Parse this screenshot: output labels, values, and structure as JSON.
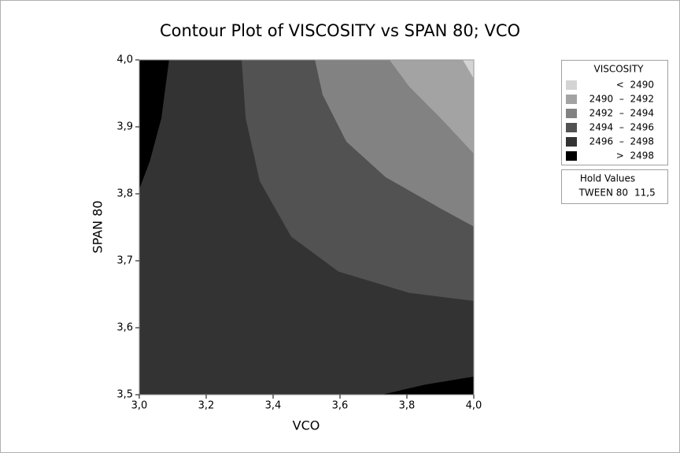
{
  "chart_data": {
    "type": "contour",
    "title": "Contour Plot of VISCOSITY vs SPAN 80; VCO",
    "x_label": "VCO",
    "y_label": "SPAN 80",
    "xlim": [
      3.0,
      4.0
    ],
    "ylim": [
      3.5,
      4.0
    ],
    "xticks": [
      {
        "value": 3.0,
        "label": "3,0"
      },
      {
        "value": 3.2,
        "label": "3,2"
      },
      {
        "value": 3.4,
        "label": "3,4"
      },
      {
        "value": 3.6,
        "label": "3,6"
      },
      {
        "value": 3.8,
        "label": "3,8"
      },
      {
        "value": 4.0,
        "label": "4,0"
      }
    ],
    "yticks": [
      {
        "value": 3.5,
        "label": "3,5"
      },
      {
        "value": 3.6,
        "label": "3,6"
      },
      {
        "value": 3.7,
        "label": "3,7"
      },
      {
        "value": 3.8,
        "label": "3,8"
      },
      {
        "value": 3.9,
        "label": "3,9"
      },
      {
        "value": 4.0,
        "label": "4,0"
      }
    ],
    "legend_title": "VISCOSITY",
    "series": [
      {
        "name": "<  2490",
        "color": "#d4d4d4",
        "x": [
          3.967,
          4.0
        ],
        "y": [
          4.0,
          3.972
        ]
      },
      {
        "name": "2490  –  2492",
        "color": "#a3a3a3",
        "x": [
          3.748,
          3.807,
          3.901,
          4.0
        ],
        "y": [
          4.0,
          3.96,
          3.913,
          3.86
        ]
      },
      {
        "name": "2492  –  2494",
        "color": "#828282",
        "x": [
          3.525,
          3.548,
          3.619,
          3.736,
          3.901,
          4.0
        ],
        "y": [
          4.0,
          3.948,
          3.878,
          3.825,
          3.778,
          3.751
        ]
      },
      {
        "name": "2494  –  2496",
        "color": "#525252",
        "x": [
          3.306,
          3.318,
          3.36,
          3.454,
          3.595,
          3.807,
          4.0
        ],
        "y": [
          4.0,
          3.913,
          3.819,
          3.736,
          3.684,
          3.652,
          3.64
        ]
      },
      {
        "name": "2496  –  2498",
        "color": "#333333"
      },
      {
        "name": ">  2498",
        "color": "#000000",
        "x": [
          3.089,
          3.066,
          3.031,
          3.0,
          null,
          3.725,
          3.854,
          4.0
        ],
        "y": [
          4.0,
          3.913,
          3.848,
          3.807,
          null,
          3.5,
          3.515,
          3.527
        ]
      }
    ],
    "hold_values": {
      "title": "Hold Values",
      "name": "TWEEN 80",
      "value": "11,5"
    }
  }
}
